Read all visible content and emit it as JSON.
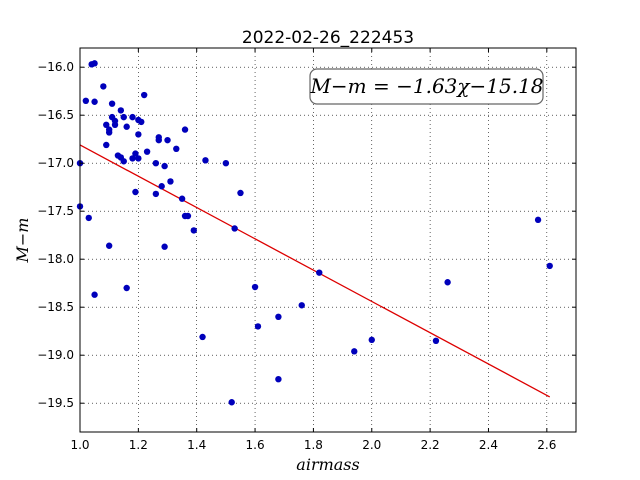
{
  "chart_data": {
    "type": "scatter",
    "title": "2022-02-26_222453",
    "xlabel": "airmass",
    "ylabel": "M−m",
    "xlim": [
      1.0,
      2.7
    ],
    "ylim": [
      -19.8,
      -15.8
    ],
    "x_ticks": [
      1.0,
      1.2,
      1.4,
      1.6,
      1.8,
      2.0,
      2.2,
      2.4,
      2.6
    ],
    "x_tick_labels": [
      "1.0",
      "1.2",
      "1.4",
      "1.6",
      "1.8",
      "2.0",
      "2.2",
      "2.4",
      "2.6"
    ],
    "y_ticks": [
      -16.0,
      -16.5,
      -17.0,
      -17.5,
      -18.0,
      -18.5,
      -19.0,
      -19.5
    ],
    "y_tick_labels": [
      "−16.0",
      "−16.5",
      "−17.0",
      "−17.5",
      "−18.0",
      "−18.5",
      "−19.0",
      "−19.5"
    ],
    "grid": true,
    "annotation": "M−m = −1.63χ−15.18",
    "point_color": "#0000bb",
    "line_color": "#dd0000",
    "fit": {
      "slope": -1.63,
      "intercept": -15.18,
      "x_range": [
        1.0,
        2.61
      ]
    },
    "series": [
      {
        "points": [
          [
            1.0,
            -17.0
          ],
          [
            1.0,
            -17.45
          ],
          [
            1.02,
            -16.35
          ],
          [
            1.03,
            -17.57
          ],
          [
            1.04,
            -15.97
          ],
          [
            1.05,
            -15.96
          ],
          [
            1.05,
            -16.36
          ],
          [
            1.05,
            -18.37
          ],
          [
            1.08,
            -16.2
          ],
          [
            1.09,
            -16.6
          ],
          [
            1.09,
            -16.81
          ],
          [
            1.1,
            -16.65
          ],
          [
            1.1,
            -16.68
          ],
          [
            1.1,
            -17.86
          ],
          [
            1.11,
            -16.38
          ],
          [
            1.11,
            -16.52
          ],
          [
            1.12,
            -16.6
          ],
          [
            1.12,
            -16.56
          ],
          [
            1.13,
            -16.92
          ],
          [
            1.14,
            -16.45
          ],
          [
            1.14,
            -16.94
          ],
          [
            1.15,
            -16.52
          ],
          [
            1.15,
            -16.98
          ],
          [
            1.16,
            -16.62
          ],
          [
            1.16,
            -18.3
          ],
          [
            1.18,
            -16.95
          ],
          [
            1.18,
            -16.52
          ],
          [
            1.19,
            -16.9
          ],
          [
            1.19,
            -17.3
          ],
          [
            1.2,
            -16.95
          ],
          [
            1.2,
            -16.7
          ],
          [
            1.2,
            -16.55
          ],
          [
            1.21,
            -16.57
          ],
          [
            1.22,
            -16.29
          ],
          [
            1.23,
            -16.88
          ],
          [
            1.26,
            -17.0
          ],
          [
            1.26,
            -17.32
          ],
          [
            1.27,
            -16.76
          ],
          [
            1.27,
            -16.73
          ],
          [
            1.28,
            -17.24
          ],
          [
            1.29,
            -17.03
          ],
          [
            1.29,
            -17.87
          ],
          [
            1.3,
            -16.76
          ],
          [
            1.31,
            -17.19
          ],
          [
            1.33,
            -16.85
          ],
          [
            1.35,
            -17.37
          ],
          [
            1.36,
            -17.55
          ],
          [
            1.36,
            -16.65
          ],
          [
            1.37,
            -17.55
          ],
          [
            1.39,
            -17.7
          ],
          [
            1.42,
            -18.81
          ],
          [
            1.43,
            -16.97
          ],
          [
            1.5,
            -17.0
          ],
          [
            1.52,
            -19.49
          ],
          [
            1.53,
            -17.68
          ],
          [
            1.55,
            -17.31
          ],
          [
            1.6,
            -18.29
          ],
          [
            1.61,
            -18.7
          ],
          [
            1.68,
            -18.6
          ],
          [
            1.68,
            -19.25
          ],
          [
            1.76,
            -18.48
          ],
          [
            1.82,
            -18.14
          ],
          [
            1.94,
            -18.96
          ],
          [
            2.0,
            -18.84
          ],
          [
            2.22,
            -18.85
          ],
          [
            2.26,
            -18.24
          ],
          [
            2.57,
            -17.59
          ],
          [
            2.61,
            -18.07
          ]
        ]
      }
    ]
  }
}
